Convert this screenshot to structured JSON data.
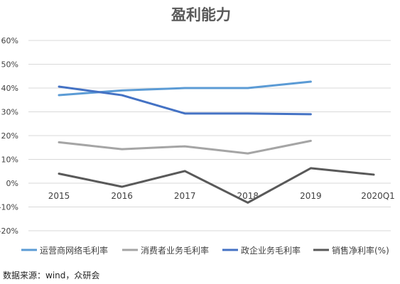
{
  "chart_data": {
    "type": "line",
    "title": "盈利能力",
    "xlabel": "",
    "ylabel": "",
    "categories": [
      "2015",
      "2016",
      "2017",
      "2018",
      "2019",
      "2020Q1"
    ],
    "yticks": [
      "60%",
      "50%",
      "40%",
      "30%",
      "20%",
      "10%",
      "0%",
      "-10%",
      "-20%"
    ],
    "ylim": [
      -20,
      60
    ],
    "ystep": 10,
    "grid": true,
    "legend_position": "bottom",
    "series": [
      {
        "name": "运营商网络毛利率",
        "color": "#5b9bd5",
        "values": [
          37,
          39,
          40,
          40,
          42.7,
          null
        ]
      },
      {
        "name": "消费者业务毛利率",
        "color": "#a5a5a5",
        "values": [
          17.2,
          14.3,
          15.5,
          12.5,
          17.8,
          null
        ]
      },
      {
        "name": "政企业务毛利率",
        "color": "#4472c4",
        "values": [
          40.6,
          37,
          29.3,
          29.3,
          29,
          null
        ]
      },
      {
        "name": "销售净利率(%)",
        "color": "#595959",
        "values": [
          4,
          -1.5,
          5.1,
          -8.2,
          6.3,
          3.6
        ]
      }
    ]
  },
  "footer": {
    "source": "数据来源：wind，众研会"
  }
}
